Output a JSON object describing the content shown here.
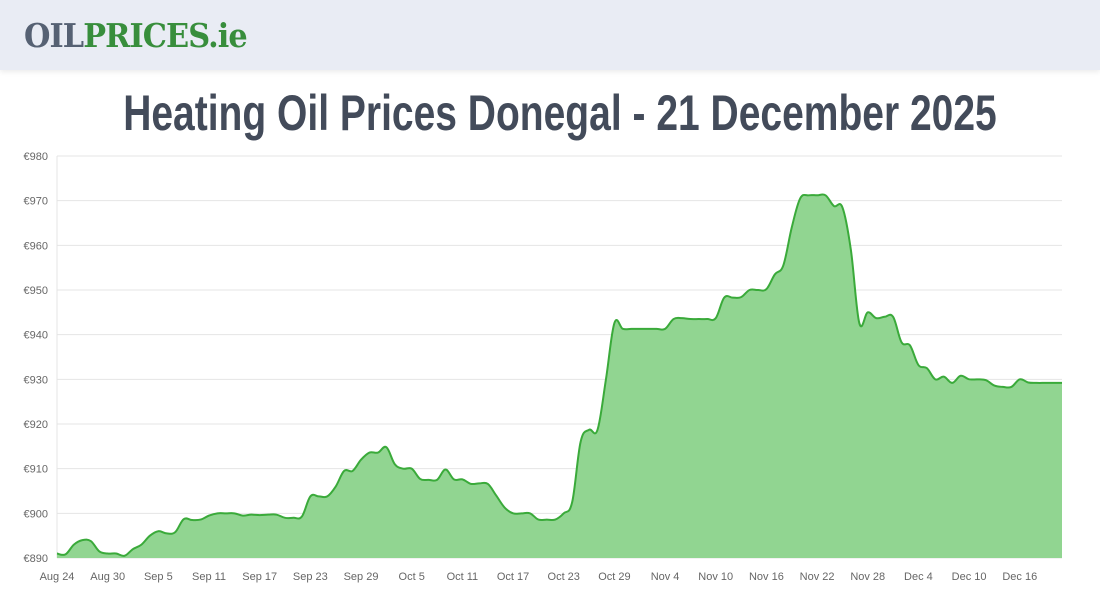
{
  "header": {
    "logo_part1": "OIL",
    "logo_part2": "PRICES.ie"
  },
  "title": "Heating Oil Prices Donegal - 21 December 2025",
  "chart_data": {
    "type": "area",
    "title": "Heating Oil Prices Donegal - 21 December 2025",
    "xlabel": "",
    "ylabel": "",
    "start_date": "Aug 24",
    "x_ticks": [
      "Aug 24",
      "Aug 30",
      "Sep 5",
      "Sep 11",
      "Sep 17",
      "Sep 23",
      "Sep 29",
      "Oct 5",
      "Oct 11",
      "Oct 17",
      "Oct 23",
      "Oct 29",
      "Nov 4",
      "Nov 10",
      "Nov 16",
      "Nov 22",
      "Nov 28",
      "Dec 4",
      "Dec 10",
      "Dec 16"
    ],
    "y_ticks": [
      "€890",
      "€900",
      "€910",
      "€920",
      "€930",
      "€940",
      "€950",
      "€960",
      "€970",
      "€980"
    ],
    "ylim": [
      890,
      980
    ],
    "grid": true,
    "colors": {
      "line": "#3aaa3a",
      "fill": "#91d591"
    },
    "values": [
      891,
      890.8,
      893,
      894,
      893.8,
      891.5,
      891,
      891,
      890.5,
      892,
      893,
      895,
      896,
      895.5,
      895.8,
      898.7,
      898.5,
      898.6,
      899.5,
      900,
      900,
      900,
      899.5,
      899.7,
      899.6,
      899.7,
      899.7,
      899,
      899,
      899.3,
      903.8,
      903.8,
      903.8,
      906,
      909.5,
      909.5,
      912,
      913.6,
      913.6,
      914.8,
      911,
      910,
      910,
      907.7,
      907.5,
      907.5,
      909.8,
      907.6,
      907.6,
      906.6,
      906.7,
      906.6,
      904,
      901.3,
      900,
      900,
      900,
      898.6,
      898.6,
      898.6,
      900,
      902.5,
      916,
      918.7,
      918.7,
      930,
      942.6,
      941.3,
      941.3,
      941.3,
      941.3,
      941.3,
      941.3,
      943.5,
      943.7,
      943.5,
      943.5,
      943.5,
      943.7,
      948.3,
      948.3,
      948.4,
      950,
      950,
      950.2,
      953.5,
      955.5,
      964,
      970.5,
      971.2,
      971.2,
      971.2,
      968.8,
      968.5,
      959,
      942.6,
      945,
      943.7,
      944,
      944,
      938.3,
      937.6,
      933.2,
      932.5,
      930,
      930.6,
      929.2,
      930.8,
      930,
      930,
      929.8,
      928.6,
      928.3,
      928.3,
      930,
      929.3,
      929.2,
      929.2,
      929.2,
      929.2
    ]
  }
}
